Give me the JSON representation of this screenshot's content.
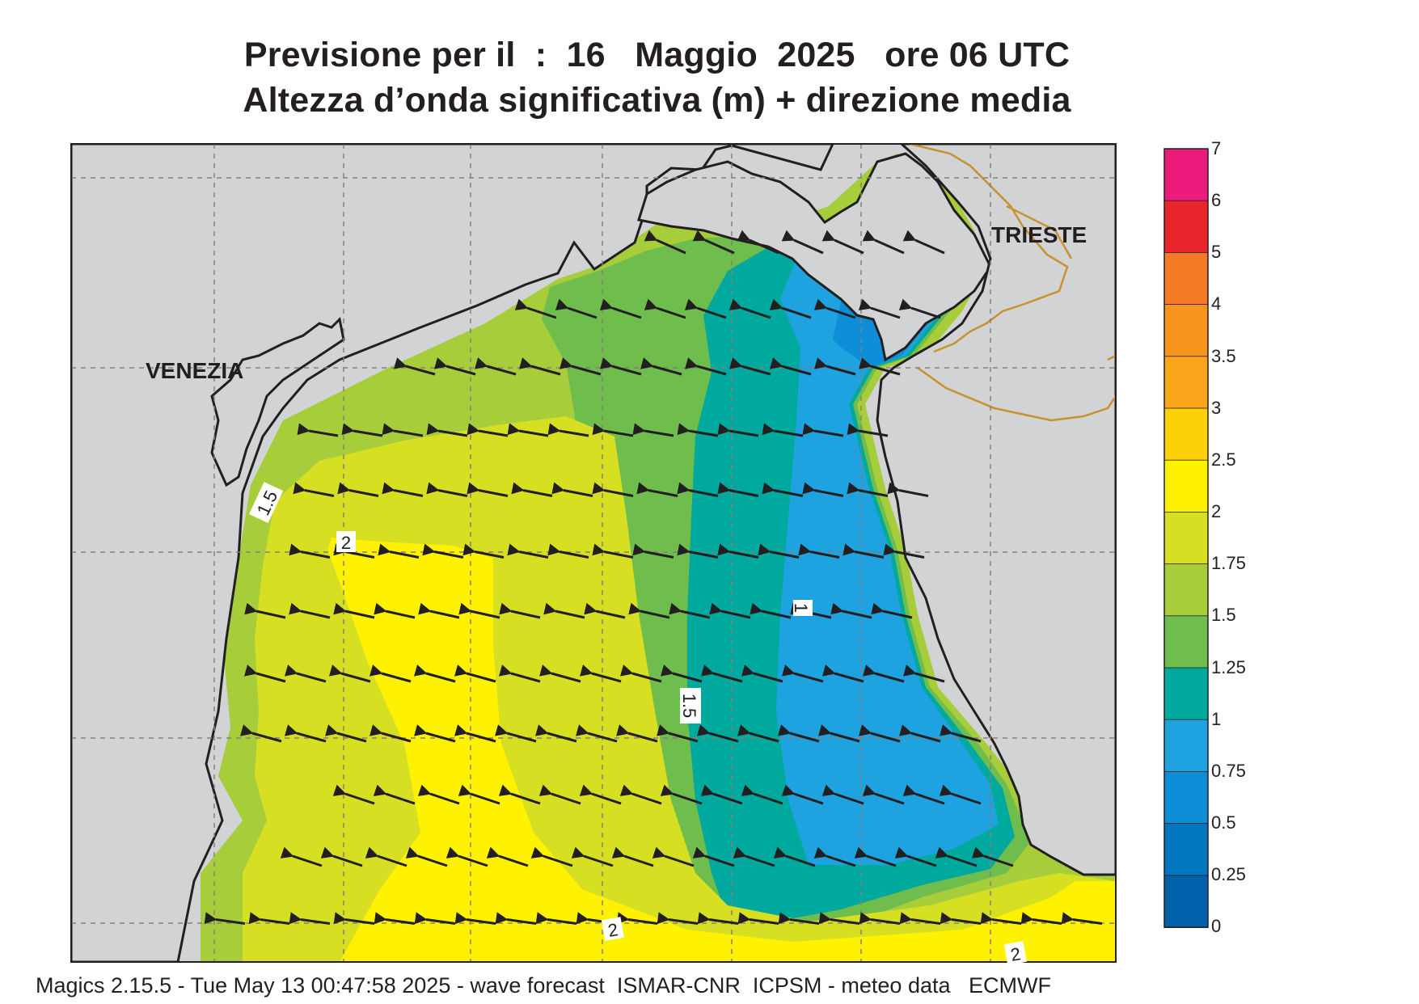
{
  "title": {
    "line1": "Previsione per il  :  16   Maggio  2025   ore 06 UTC",
    "line2": "Altezza d’onda significativa (m) + direzione media"
  },
  "cities": {
    "venezia": "VENEZIA",
    "trieste": "TRIESTE"
  },
  "contour_labels": [
    "1.5",
    "2",
    "1",
    "1.5",
    "2",
    "2"
  ],
  "legend": {
    "labels": [
      "7",
      "6",
      "5",
      "4",
      "3.5",
      "3",
      "2.5",
      "2",
      "1.75",
      "1.5",
      "1.25",
      "1",
      "0.75",
      "0.5",
      "0.25",
      "0"
    ],
    "colors": [
      "#ec1c7c",
      "#e8262b",
      "#f47a25",
      "#f7941d",
      "#faa61a",
      "#fdd008",
      "#fff200",
      "#d7df23",
      "#a8cd3a",
      "#6ebd4d",
      "#00a99d",
      "#1fa2e0",
      "#0d8ed6",
      "#0077c0",
      "#0060aa"
    ],
    "units": "m"
  },
  "colors": {
    "land": "#d1d3d4",
    "coast": "#231f20",
    "border": "#c8922e",
    "grid": "#8a7f76",
    "arrow": "#231f20"
  },
  "footer": "Magics 2.15.5 - Tue May 13 00:47:58 2025 - wave forecast  ISMAR-CNR  ICPSM - meteo data   ECMWF"
}
